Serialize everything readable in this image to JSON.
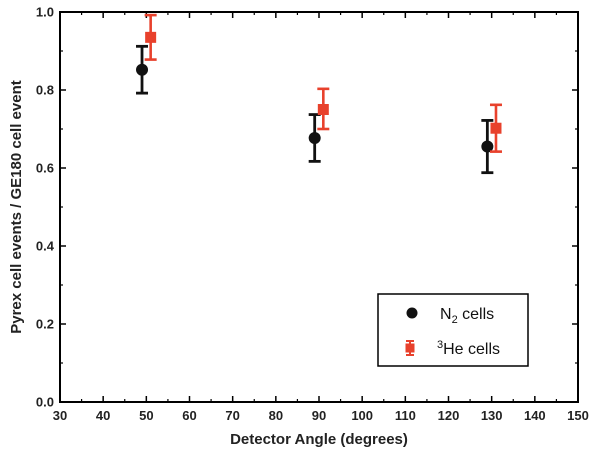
{
  "chart_data": {
    "type": "scatter",
    "title": "",
    "xlabel": "Detector Angle (degrees)",
    "ylabel": "Pyrex cell events / GE180 cell event",
    "xlim": [
      30,
      150
    ],
    "ylim": [
      0.0,
      1.0
    ],
    "x_ticks": [
      "30",
      "40",
      "50",
      "60",
      "70",
      "80",
      "90",
      "100",
      "110",
      "120",
      "130",
      "140",
      "150"
    ],
    "y_ticks": [
      "0.0",
      "0.2",
      "0.4",
      "0.6",
      "0.8",
      "1.0"
    ],
    "grid": false,
    "legend_position": "bottom-right",
    "legend": {
      "n2_main": "N",
      "n2_sub": "2",
      "n2_rest": " cells",
      "he_sup": "3",
      "he_rest": "He cells"
    },
    "series": [
      {
        "key": "n2",
        "color": "#111111",
        "marker": "circle",
        "points": [
          {
            "x": 49,
            "y": 0.852,
            "err_low": 0.792,
            "err_high": 0.912
          },
          {
            "x": 89,
            "y": 0.677,
            "err_low": 0.617,
            "err_high": 0.737
          },
          {
            "x": 129,
            "y": 0.655,
            "err_low": 0.588,
            "err_high": 0.722
          }
        ]
      },
      {
        "key": "he3",
        "color": "#e8412c",
        "marker": "square",
        "points": [
          {
            "x": 51,
            "y": 0.935,
            "err_low": 0.878,
            "err_high": 0.992
          },
          {
            "x": 91,
            "y": 0.75,
            "err_low": 0.7,
            "err_high": 0.803
          },
          {
            "x": 131,
            "y": 0.702,
            "err_low": 0.642,
            "err_high": 0.762
          }
        ]
      }
    ]
  }
}
